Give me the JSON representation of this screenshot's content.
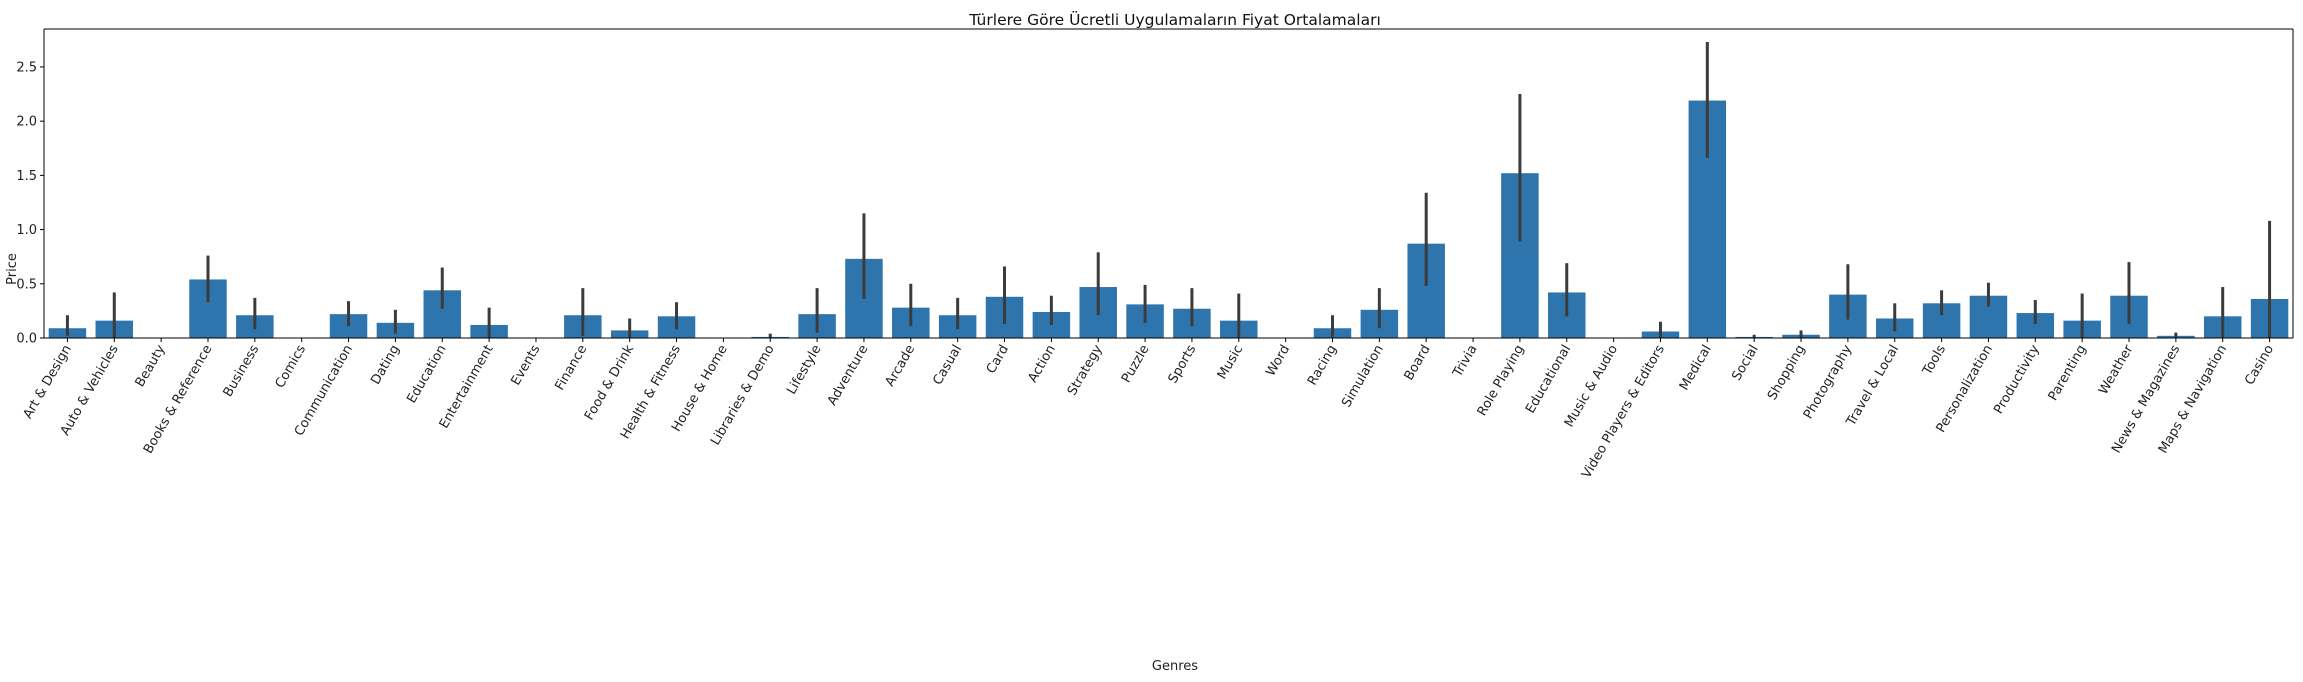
{
  "chart_data": {
    "type": "bar",
    "title": "Türlere Göre Ücretli Uygulamaların Fiyat Ortalamaları",
    "xlabel": "Genres",
    "ylabel": "Price",
    "ylim": [
      0,
      2.85
    ],
    "yticks": [
      "0.0",
      "0.5",
      "1.0",
      "1.5",
      "2.0",
      "2.5"
    ],
    "bar_color": "#2f75ad",
    "error_color": "#3b3b3b",
    "categories": [
      "Art & Design",
      "Auto & Vehicles",
      "Beauty",
      "Books & Reference",
      "Business",
      "Comics",
      "Communication",
      "Dating",
      "Education",
      "Entertainment",
      "Events",
      "Finance",
      "Food & Drink",
      "Health & Fitness",
      "House & Home",
      "Libraries & Demo",
      "Lifestyle",
      "Adventure",
      "Arcade",
      "Casual",
      "Card",
      "Action",
      "Strategy",
      "Puzzle",
      "Sports",
      "Music",
      "Word",
      "Racing",
      "Simulation",
      "Board",
      "Trivia",
      "Role Playing",
      "Educational",
      "Music & Audio",
      "Video Players & Editors",
      "Medical",
      "Social",
      "Shopping",
      "Photography",
      "Travel & Local",
      "Tools",
      "Personalization",
      "Productivity",
      "Parenting",
      "Weather",
      "News & Magazines",
      "Maps & Navigation",
      "Casino"
    ],
    "values": [
      0.09,
      0.16,
      0.0,
      0.54,
      0.21,
      0.0,
      0.22,
      0.14,
      0.44,
      0.12,
      0.0,
      0.21,
      0.07,
      0.2,
      0.0,
      0.01,
      0.22,
      0.73,
      0.28,
      0.21,
      0.38,
      0.24,
      0.47,
      0.31,
      0.27,
      0.16,
      0.0,
      0.09,
      0.26,
      0.87,
      0.0,
      1.52,
      0.42,
      0.0,
      0.06,
      2.19,
      0.01,
      0.03,
      0.4,
      0.18,
      0.32,
      0.39,
      0.23,
      0.16,
      0.39,
      0.02,
      0.2,
      0.36
    ],
    "error_low": [
      0.02,
      0.0,
      0.0,
      0.33,
      0.08,
      0.0,
      0.11,
      0.04,
      0.27,
      0.0,
      0.0,
      0.02,
      0.0,
      0.08,
      0.0,
      0.0,
      0.05,
      0.36,
      0.11,
      0.08,
      0.13,
      0.12,
      0.21,
      0.14,
      0.11,
      0.0,
      0.0,
      0.01,
      0.09,
      0.48,
      0.0,
      0.89,
      0.2,
      0.0,
      0.0,
      1.66,
      0.0,
      0.0,
      0.17,
      0.06,
      0.21,
      0.29,
      0.13,
      0.0,
      0.13,
      0.0,
      0.0,
      0.0
    ],
    "error_high": [
      0.21,
      0.42,
      0.0,
      0.76,
      0.37,
      0.0,
      0.34,
      0.26,
      0.65,
      0.28,
      0.0,
      0.46,
      0.18,
      0.33,
      0.0,
      0.04,
      0.46,
      1.15,
      0.5,
      0.37,
      0.66,
      0.39,
      0.79,
      0.49,
      0.46,
      0.41,
      0.0,
      0.21,
      0.46,
      1.34,
      0.0,
      2.25,
      0.69,
      0.0,
      0.15,
      2.73,
      0.03,
      0.07,
      0.68,
      0.32,
      0.44,
      0.51,
      0.35,
      0.41,
      0.7,
      0.05,
      0.47,
      1.08
    ],
    "grid": false,
    "legend": "none"
  }
}
